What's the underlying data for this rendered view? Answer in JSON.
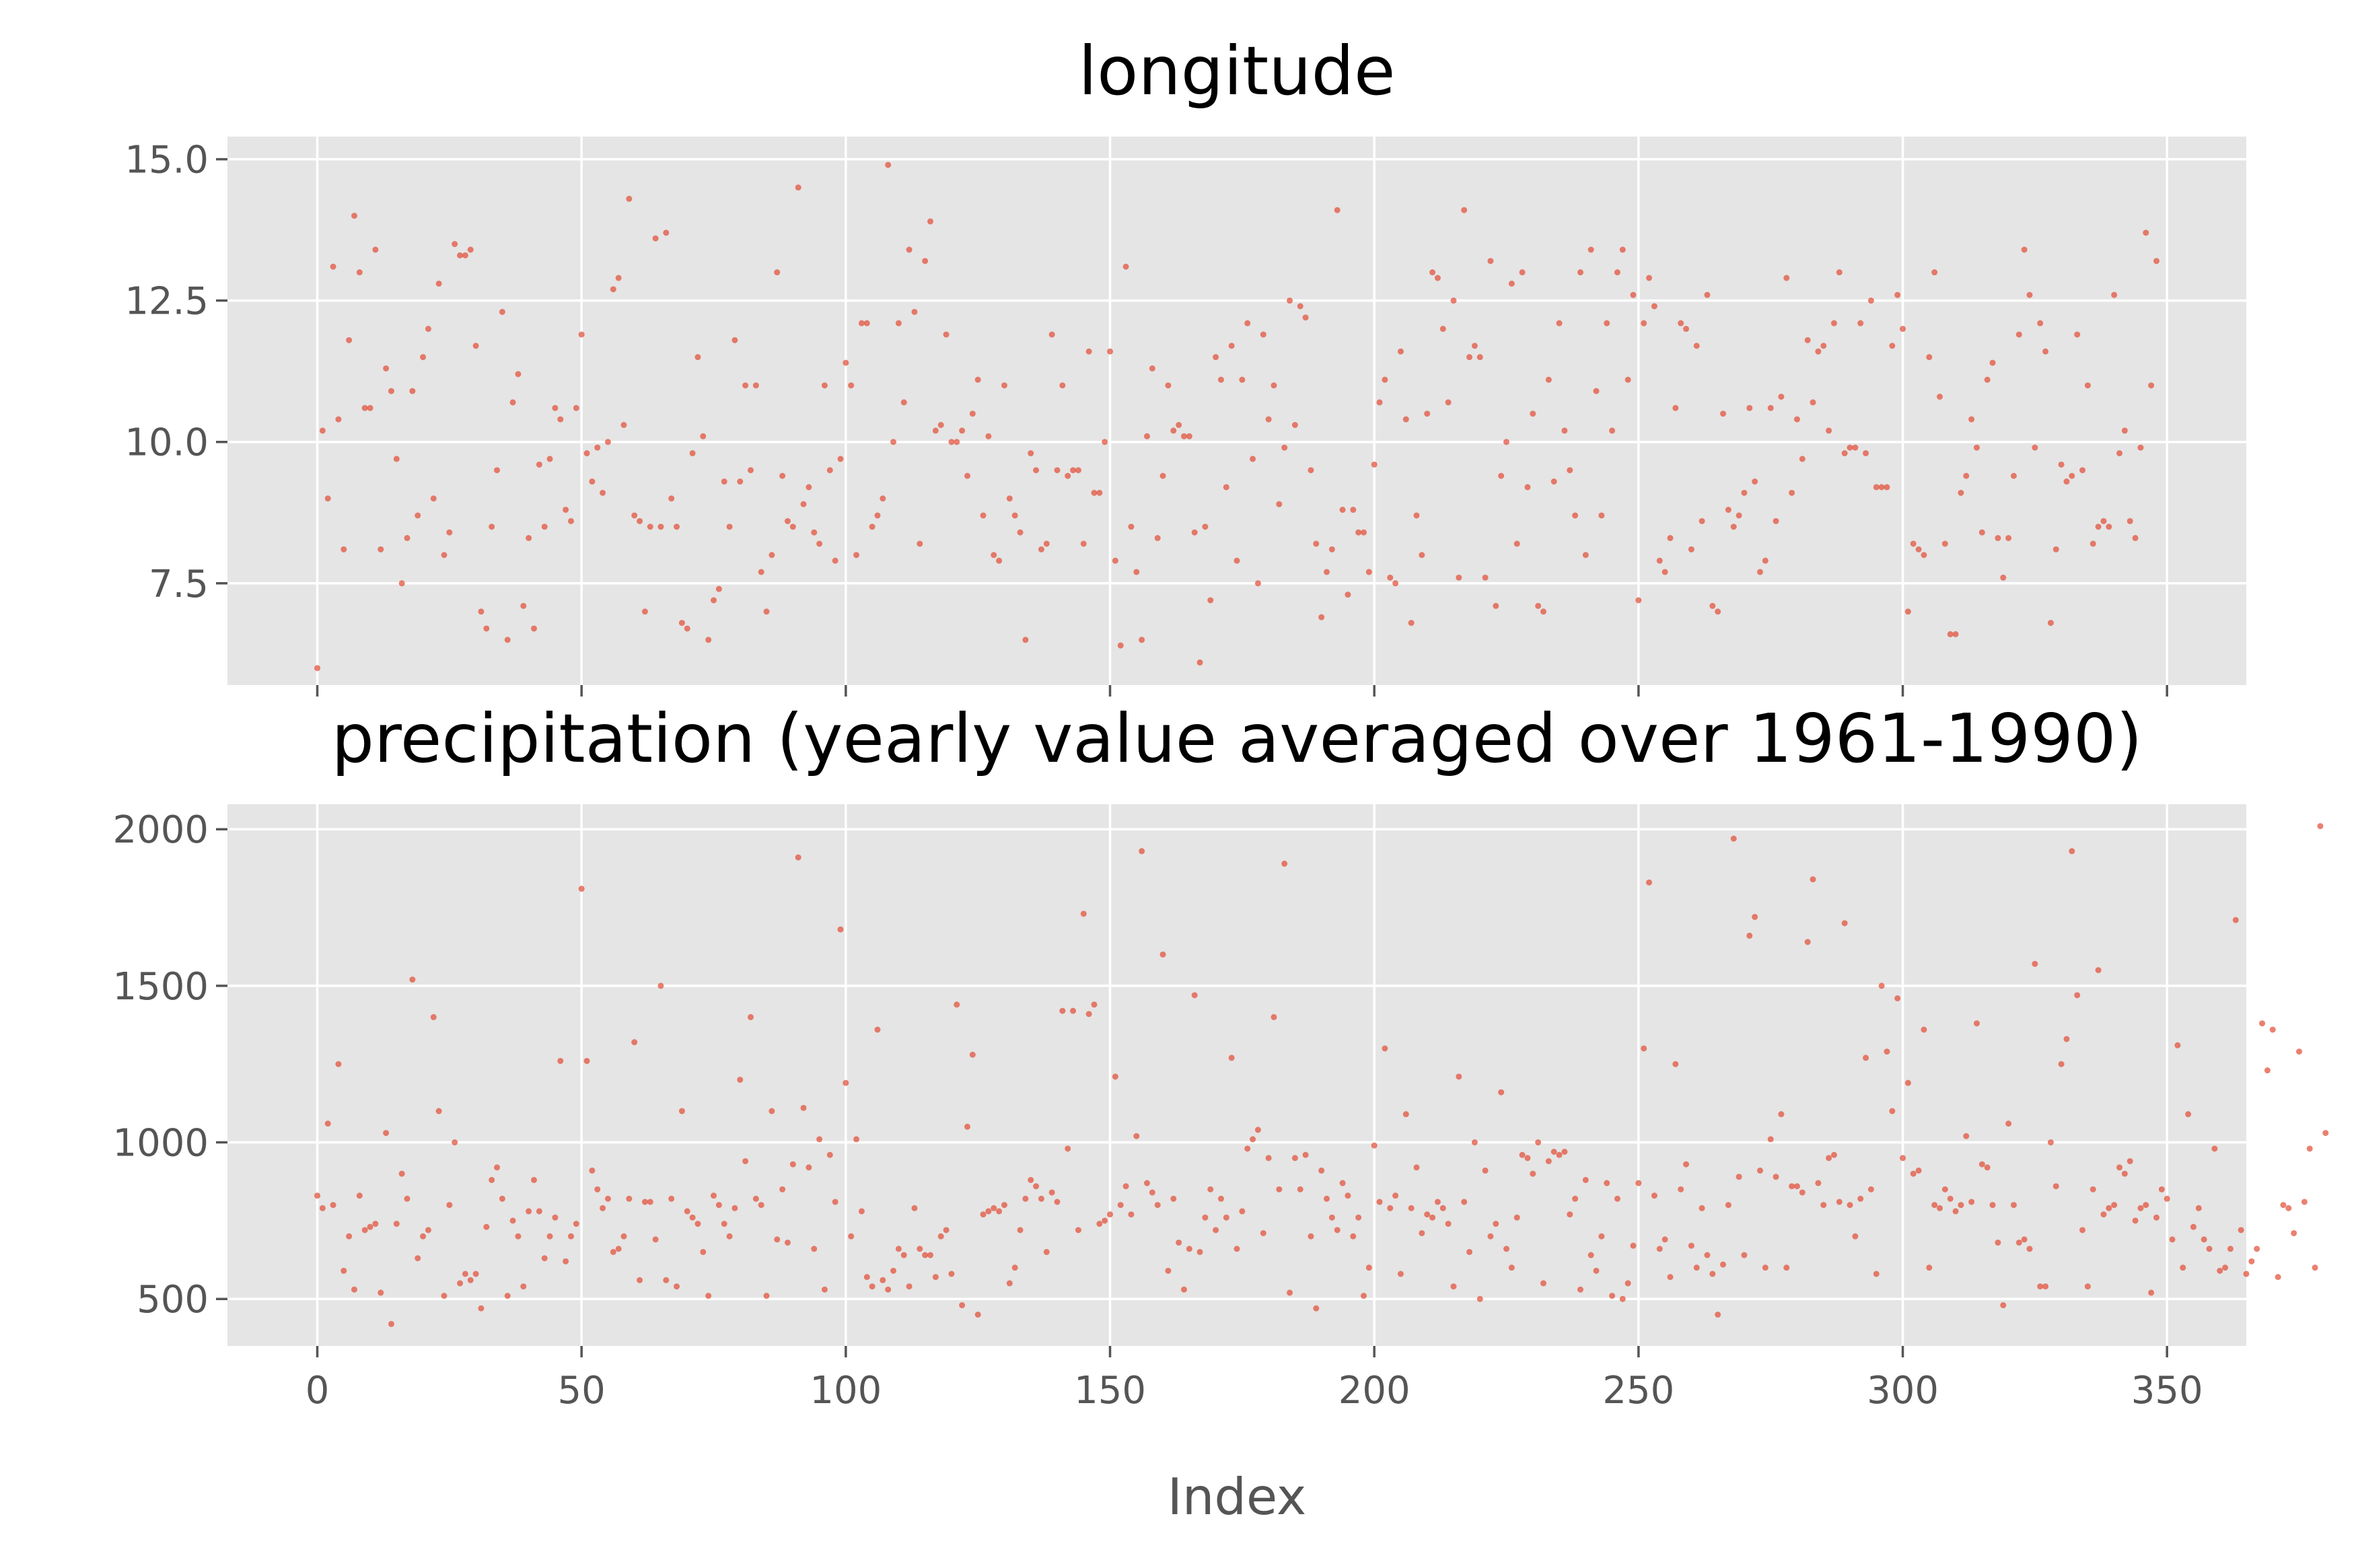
{
  "chart_data": [
    {
      "type": "scatter",
      "title": "longitude",
      "xlabel": "",
      "ylabel": "",
      "grid": true,
      "xlim": [
        -17,
        365
      ],
      "ylim": [
        5.7,
        15.4
      ],
      "xticks": [
        0,
        50,
        100,
        150,
        200,
        250,
        300,
        350
      ],
      "xticklabels_visible": false,
      "yticks": [
        7.5,
        10.0,
        12.5,
        15.0
      ],
      "yticklabels": [
        "7.5",
        "10.0",
        "12.5",
        "15.0"
      ],
      "color": "#e24a33",
      "x_start": 0,
      "y": [
        6.0,
        10.2,
        9.0,
        13.1,
        10.4,
        8.1,
        11.8,
        14.0,
        13.0,
        10.6,
        10.6,
        13.4,
        8.1,
        11.3,
        10.9,
        9.7,
        7.5,
        8.3,
        10.9,
        8.7,
        11.5,
        12.0,
        9.0,
        12.8,
        8.0,
        8.4,
        13.5,
        13.3,
        13.3,
        13.4,
        11.7,
        7.0,
        6.7,
        8.5,
        9.5,
        12.3,
        6.5,
        10.7,
        11.2,
        7.1,
        8.3,
        6.7,
        9.6,
        8.5,
        9.7,
        10.6,
        10.4,
        8.8,
        8.6,
        10.6,
        11.9,
        9.8,
        9.3,
        9.9,
        9.1,
        10.0,
        12.7,
        12.9,
        10.3,
        14.3,
        8.7,
        8.6,
        7.0,
        8.5,
        13.6,
        8.5,
        13.7,
        9.0,
        8.5,
        6.8,
        6.7,
        9.8,
        11.5,
        10.1,
        6.5,
        7.2,
        7.4,
        9.3,
        8.5,
        11.8,
        9.3,
        11.0,
        9.5,
        11.0,
        7.7,
        7.0,
        8.0,
        13.0,
        9.4,
        8.6,
        8.5,
        14.5,
        8.9,
        9.2,
        8.4,
        8.2,
        11.0,
        9.5,
        7.9,
        9.7,
        11.4,
        11.0,
        8.0,
        12.1,
        12.1,
        8.5,
        8.7,
        9.0,
        14.9,
        10.0,
        12.1,
        10.7,
        13.4,
        12.3,
        8.2,
        13.2,
        13.9,
        10.2,
        10.3,
        11.9,
        10.0,
        10.0,
        10.2,
        9.4,
        10.5,
        11.1,
        8.7,
        10.1,
        8.0,
        7.9,
        11.0,
        9.0,
        8.7,
        8.4,
        6.5,
        9.8,
        9.5,
        8.1,
        8.2,
        11.9,
        9.5,
        11.0,
        9.4,
        9.5,
        9.5,
        8.2,
        11.6,
        9.1,
        9.1,
        10.0,
        11.6,
        7.9,
        6.4,
        13.1,
        8.5,
        7.7,
        6.5,
        10.1,
        11.3,
        8.3,
        9.4,
        11.0,
        10.2,
        10.3,
        10.1,
        10.1,
        8.4,
        6.1,
        8.5,
        7.2,
        11.5,
        11.1,
        9.2,
        11.7,
        7.9,
        11.1,
        12.1,
        9.7,
        7.5,
        11.9,
        10.4,
        11.0,
        8.9,
        9.9,
        12.5,
        10.3,
        12.4,
        12.2,
        9.5,
        8.2,
        6.9,
        7.7,
        8.1,
        14.1,
        8.8,
        7.3,
        8.8,
        8.4,
        8.4,
        7.7,
        9.6,
        10.7,
        11.1,
        7.6,
        7.5,
        11.6,
        10.4,
        6.8,
        8.7,
        8.0,
        10.5,
        13.0,
        12.9,
        12.0,
        10.7,
        12.5,
        7.6,
        14.1,
        11.5,
        11.7,
        11.5,
        7.6,
        13.2,
        7.1,
        9.4,
        10.0,
        12.8,
        8.2,
        13.0,
        9.2,
        10.5,
        7.1,
        7.0,
        11.1,
        9.3,
        12.1,
        10.2,
        9.5,
        8.7,
        13.0,
        8.0,
        13.4,
        10.9,
        8.7,
        12.1,
        10.2,
        13.0,
        13.4,
        11.1,
        12.6,
        7.2,
        12.1,
        12.9,
        12.4,
        7.9,
        7.7,
        8.3,
        10.6,
        12.1,
        12.0,
        8.1,
        11.7,
        8.6,
        12.6,
        7.1,
        7.0,
        10.5,
        8.8,
        8.5,
        8.7,
        9.1,
        10.6,
        9.3,
        7.7,
        7.9,
        10.6,
        8.6,
        10.8,
        12.9,
        9.1,
        10.4,
        9.7,
        11.8,
        10.7,
        11.6,
        11.7,
        10.2,
        12.1,
        13.0,
        9.8,
        9.9,
        9.9,
        12.1,
        9.8,
        12.5,
        9.2,
        9.2,
        9.2,
        11.7,
        12.6,
        12.0,
        7.0,
        8.2,
        8.1,
        8.0,
        11.5,
        13.0,
        10.8,
        8.2,
        6.6,
        6.6,
        9.1,
        9.4,
        10.4,
        9.9,
        8.4,
        11.1,
        11.4,
        8.3,
        7.6,
        8.3,
        9.4,
        11.9,
        13.4,
        12.6,
        9.9,
        12.1,
        11.6,
        6.8,
        8.1,
        9.6,
        9.3,
        9.4,
        11.9,
        9.5,
        11.0,
        8.2,
        8.5,
        8.6,
        8.5,
        12.6,
        9.8,
        10.2,
        8.6,
        8.3,
        9.9,
        13.7,
        11.0,
        13.2
      ]
    },
    {
      "type": "scatter",
      "title": "precipitation (yearly value averaged over 1961-1990)",
      "xlabel": "Index",
      "ylabel": "",
      "grid": true,
      "xlim": [
        -17,
        365
      ],
      "ylim": [
        350,
        2080
      ],
      "xticks": [
        0,
        50,
        100,
        150,
        200,
        250,
        300,
        350
      ],
      "xticklabels": [
        "0",
        "50",
        "100",
        "150",
        "200",
        "250",
        "300",
        "350"
      ],
      "yticks": [
        500,
        1000,
        1500,
        2000
      ],
      "yticklabels": [
        "500",
        "1000",
        "1500",
        "2000"
      ],
      "color": "#e24a33",
      "x_start": 0,
      "y": [
        830,
        790,
        1060,
        800,
        1250,
        590,
        700,
        530,
        830,
        720,
        730,
        740,
        520,
        1030,
        420,
        740,
        900,
        820,
        1520,
        630,
        700,
        720,
        1400,
        1100,
        510,
        800,
        1000,
        550,
        580,
        560,
        580,
        470,
        730,
        880,
        920,
        820,
        510,
        750,
        700,
        540,
        780,
        880,
        780,
        630,
        700,
        760,
        1260,
        620,
        700,
        740,
        1810,
        1260,
        910,
        850,
        790,
        820,
        650,
        660,
        700,
        820,
        1320,
        560,
        810,
        810,
        690,
        1500,
        560,
        820,
        540,
        1100,
        780,
        760,
        740,
        650,
        510,
        830,
        800,
        740,
        700,
        790,
        1200,
        940,
        1400,
        820,
        800,
        510,
        1100,
        690,
        850,
        680,
        930,
        1910,
        1110,
        920,
        660,
        1010,
        530,
        960,
        810,
        1680,
        1190,
        700,
        1010,
        780,
        570,
        540,
        1360,
        560,
        530,
        590,
        660,
        640,
        540,
        790,
        660,
        640,
        640,
        570,
        700,
        720,
        580,
        1440,
        480,
        1050,
        1280,
        450,
        770,
        780,
        790,
        780,
        800,
        550,
        600,
        720,
        820,
        880,
        860,
        820,
        650,
        840,
        810,
        1420,
        980,
        1420,
        720,
        1730,
        1410,
        1440,
        740,
        750,
        770,
        1210,
        800,
        860,
        770,
        1020,
        1930,
        870,
        840,
        800,
        1600,
        590,
        820,
        680,
        530,
        660,
        1470,
        650,
        760,
        850,
        720,
        820,
        760,
        1270,
        660,
        780,
        980,
        1010,
        1040,
        710,
        950,
        1400,
        850,
        1890,
        520,
        950,
        850,
        960,
        700,
        470,
        910,
        820,
        760,
        720,
        870,
        830,
        700,
        760,
        510,
        600,
        990,
        810,
        1300,
        790,
        830,
        580,
        1090,
        790,
        920,
        710,
        770,
        760,
        810,
        790,
        740,
        540,
        1210,
        810,
        650,
        1000,
        500,
        910,
        700,
        740,
        1160,
        660,
        600,
        760,
        960,
        950,
        900,
        1000,
        550,
        940,
        970,
        960,
        970,
        770,
        820,
        530,
        880,
        640,
        590,
        700,
        870,
        510,
        820,
        500,
        550,
        670,
        870,
        1300,
        1830,
        830,
        660,
        690,
        570,
        1250,
        850,
        930,
        670,
        600,
        790,
        640,
        580,
        450,
        610,
        800,
        1970,
        890,
        640,
        1660,
        1720,
        910,
        600,
        1010,
        890,
        1090,
        600,
        860,
        860,
        840,
        1640,
        1840,
        870,
        800,
        950,
        960,
        810,
        1700,
        800,
        700,
        820,
        1270,
        850,
        580,
        1500,
        1290,
        1100,
        1460,
        950,
        1190,
        900,
        910,
        1360,
        600,
        800,
        790,
        850,
        820,
        780,
        800,
        1020,
        810,
        1380,
        930,
        920,
        800,
        680,
        480,
        1060,
        800,
        680,
        690,
        660,
        1570,
        540,
        540,
        1000,
        860,
        1250,
        1330,
        1930,
        1470,
        720,
        540,
        850,
        1550,
        770,
        790,
        800,
        920,
        900,
        940,
        750,
        790,
        800,
        520,
        760,
        850,
        820,
        690,
        1310,
        600,
        1090,
        730,
        790,
        690,
        660,
        980,
        590,
        600,
        660,
        1710,
        720,
        580,
        620,
        660,
        1380,
        1230,
        1360,
        570,
        800,
        790,
        710,
        1290,
        810,
        980,
        600,
        2010,
        1030
      ]
    }
  ]
}
